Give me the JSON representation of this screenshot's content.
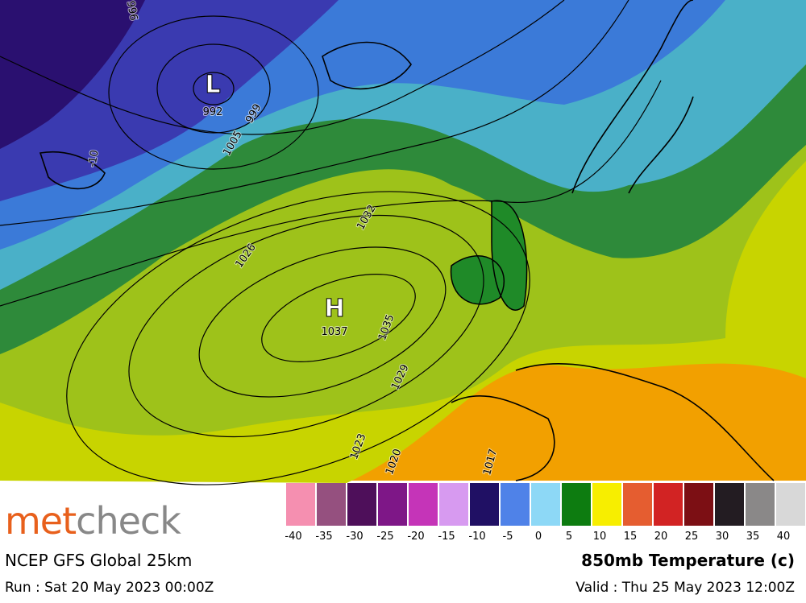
{
  "map": {
    "lows": [
      {
        "symbol": "L",
        "pressure": "992"
      }
    ],
    "highs": [
      {
        "symbol": "H",
        "pressure": "1037"
      }
    ],
    "isobar_labels": [
      "996",
      "999",
      "1005",
      "1026",
      "1032",
      "1035",
      "1029",
      "1023",
      "1020",
      "1017"
    ],
    "temp_label": "-10"
  },
  "legend": {
    "colors": [
      "#f58fb0",
      "#95507f",
      "#4e0f5a",
      "#7e1787",
      "#c534b8",
      "#d79af0",
      "#201064",
      "#4f82e8",
      "#8dd8f6",
      "#0d7c10",
      "#f7ee00",
      "#e55d30",
      "#d22323",
      "#7c0f14",
      "#231c22",
      "#8a8888",
      "#d8d8d8"
    ],
    "ticks": [
      -40,
      -35,
      -30,
      -25,
      -20,
      -15,
      -10,
      -5,
      0,
      5,
      10,
      15,
      20,
      25,
      30,
      35,
      40
    ]
  },
  "footer": {
    "logo_part1": "met",
    "logo_part2": "check",
    "model": "NCEP GFS Global 25km",
    "run": "Run : Sat 20 May 2023 00:00Z",
    "field": "850mb Temperature (c)",
    "valid": "Valid : Thu 25 May 2023 12:00Z"
  }
}
